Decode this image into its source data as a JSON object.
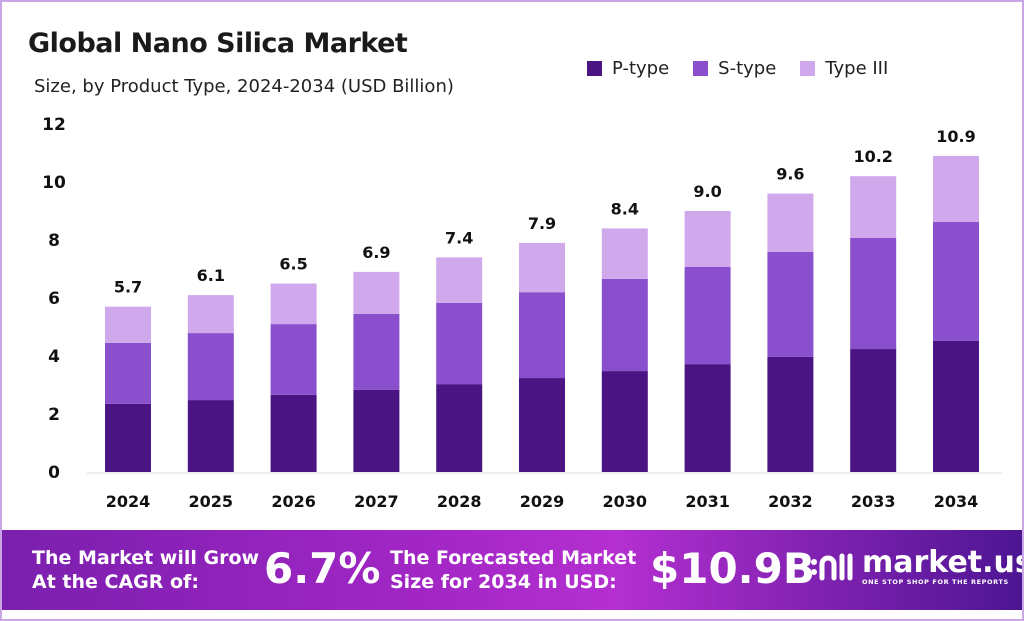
{
  "chart_data": {
    "type": "bar",
    "stacked": true,
    "title": "Global Nano Silica Market",
    "subtitle": "Size, by Product Type, 2024-2034 (USD Billion)",
    "categories": [
      "2024",
      "2025",
      "2026",
      "2027",
      "2028",
      "2029",
      "2030",
      "2031",
      "2032",
      "2033",
      "2034"
    ],
    "series": [
      {
        "name": "P-type",
        "color": "#4a1582",
        "values": [
          2.35,
          2.48,
          2.66,
          2.83,
          3.03,
          3.24,
          3.48,
          3.72,
          3.97,
          4.24,
          4.52
        ]
      },
      {
        "name": "S-type",
        "color": "#8a4fcc",
        "values": [
          2.1,
          2.31,
          2.44,
          2.62,
          2.8,
          2.96,
          3.18,
          3.35,
          3.62,
          3.83,
          4.1
        ]
      },
      {
        "name": "Type III",
        "color": "#d0a8ec",
        "values": [
          1.25,
          1.31,
          1.4,
          1.45,
          1.57,
          1.7,
          1.74,
          1.93,
          2.01,
          2.13,
          2.28
        ]
      }
    ],
    "totals": [
      "5.7",
      "6.1",
      "6.5",
      "6.9",
      "7.4",
      "7.9",
      "8.4",
      "9.0",
      "9.6",
      "10.2",
      "10.9"
    ],
    "yticks": [
      "0",
      "2",
      "4",
      "6",
      "8",
      "10",
      "12"
    ],
    "ylim": [
      0,
      12
    ],
    "grid": false,
    "legend_position": "top-right"
  },
  "banner": {
    "cagr_label": "The Market will Grow At the CAGR of:",
    "cagr_value": "6.7%",
    "forecast_label": "The Forecasted Market Size for 2034 in USD:",
    "forecast_value": "$10.9B",
    "logo_name": "market.us",
    "logo_tagline": "ONE STOP SHOP FOR THE REPORTS"
  }
}
